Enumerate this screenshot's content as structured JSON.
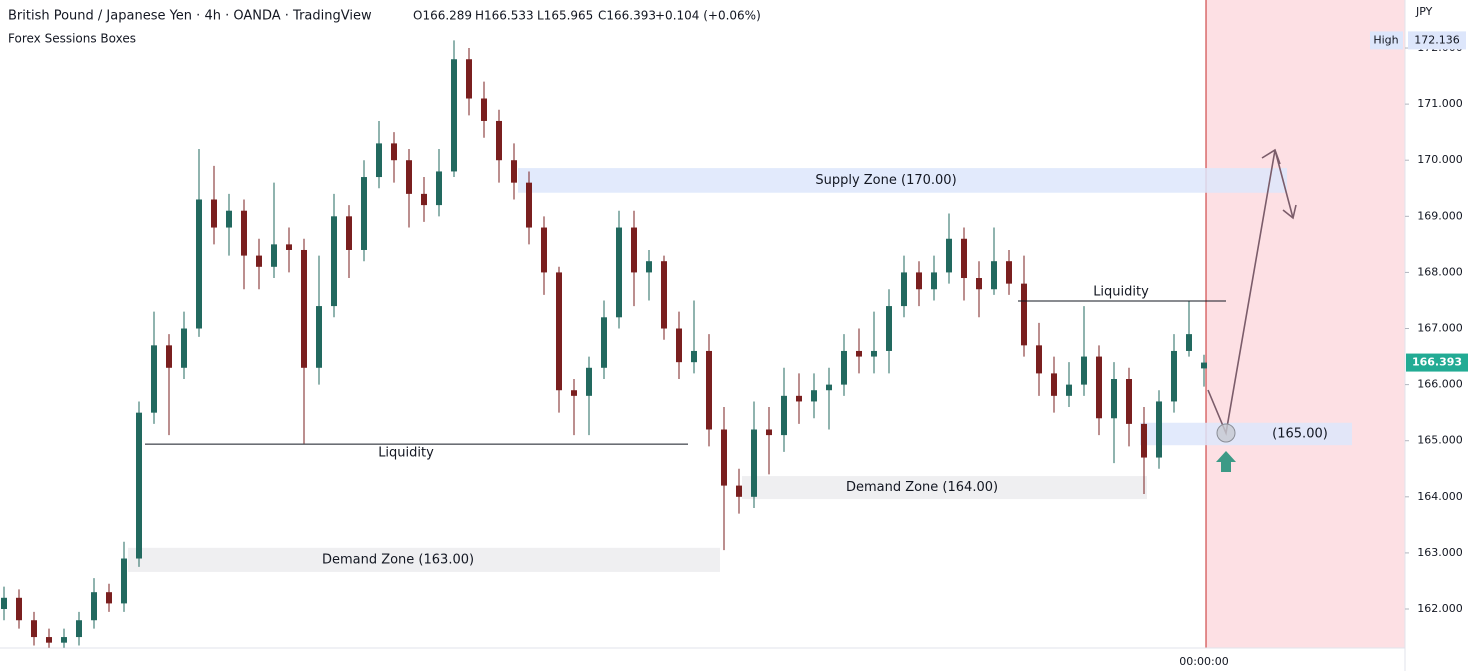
{
  "chart_data": {
    "type": "candlestick",
    "title": "British Pound / Japanese Yen · 4h · OANDA · TradingView",
    "header_values": [
      "O166.289",
      "H166.533",
      "L165.965",
      "C166.393",
      "+0.104 (+0.06%)"
    ],
    "indicator": "Forex Sessions Boxes",
    "currency": "JPY",
    "up_color": "#22695f",
    "down_color": "#7a1f1f",
    "ylim": [
      161.305,
      172.856
    ],
    "yticks": [
      {
        "value": 162,
        "label": "162.000"
      },
      {
        "value": 163,
        "label": "163.000"
      },
      {
        "value": 164,
        "label": "164.000"
      },
      {
        "value": 165,
        "label": "165.000"
      },
      {
        "value": 166,
        "label": "166.000"
      },
      {
        "value": 167,
        "label": "167.000"
      },
      {
        "value": 168,
        "label": "168.000"
      },
      {
        "value": 169,
        "label": "169.000"
      },
      {
        "value": 170,
        "label": "170.000"
      },
      {
        "value": 171,
        "label": "171.000"
      },
      {
        "value": 172,
        "label": "172.000"
      }
    ],
    "open": [
      162.0,
      162.2,
      161.8,
      161.5,
      161.4,
      161.5,
      161.8,
      162.3,
      162.1,
      162.9,
      165.5,
      166.7,
      166.3,
      167.0,
      169.3,
      168.8,
      169.1,
      168.3,
      168.1,
      168.5,
      168.4,
      166.3,
      167.4,
      169.0,
      168.4,
      169.7,
      170.3,
      170.0,
      169.4,
      169.2,
      169.8,
      171.8,
      171.1,
      170.7,
      170.0,
      169.6,
      168.8,
      168.0,
      165.9,
      165.8,
      166.3,
      167.2,
      168.8,
      168.0,
      168.2,
      167.0,
      166.4,
      166.6,
      165.2,
      164.2,
      164.0,
      165.2,
      165.1,
      165.8,
      165.7,
      165.9,
      166.0,
      166.6,
      166.5,
      166.6,
      167.4,
      168.0,
      167.7,
      168.0,
      168.6,
      167.9,
      167.7,
      168.2,
      167.8,
      166.7,
      166.2,
      165.8,
      166.0,
      166.5,
      165.4,
      166.1,
      165.3,
      164.7,
      165.7,
      166.6,
      166.289
    ],
    "high": [
      162.4,
      162.35,
      161.95,
      161.65,
      161.65,
      161.95,
      162.55,
      162.45,
      163.2,
      165.7,
      167.3,
      166.9,
      167.3,
      170.2,
      169.9,
      169.4,
      169.3,
      168.6,
      169.6,
      168.8,
      168.6,
      168.3,
      169.4,
      169.2,
      170.0,
      170.7,
      170.5,
      170.2,
      169.7,
      170.2,
      172.136,
      172.0,
      171.4,
      170.9,
      170.3,
      169.8,
      169.0,
      168.1,
      166.1,
      166.5,
      167.5,
      169.1,
      169.1,
      168.4,
      168.3,
      167.3,
      167.5,
      166.9,
      165.6,
      164.5,
      165.7,
      165.6,
      166.3,
      166.2,
      166.2,
      166.3,
      166.9,
      167.0,
      167.3,
      167.7,
      168.3,
      168.2,
      168.3,
      169.05,
      168.8,
      168.2,
      168.8,
      168.4,
      168.3,
      167.1,
      166.5,
      166.4,
      167.4,
      166.7,
      166.4,
      166.3,
      165.6,
      165.9,
      166.9,
      167.5,
      166.533
    ],
    "low": [
      161.8,
      161.65,
      161.35,
      161.31,
      161.31,
      161.35,
      161.65,
      161.95,
      161.95,
      162.75,
      165.3,
      165.1,
      166.1,
      166.85,
      168.5,
      168.3,
      167.7,
      167.7,
      167.9,
      168.0,
      164.95,
      166.0,
      167.2,
      167.9,
      168.2,
      169.5,
      169.6,
      168.8,
      168.9,
      169.0,
      169.7,
      170.8,
      170.4,
      169.6,
      169.3,
      168.5,
      167.6,
      165.5,
      165.1,
      165.1,
      166.1,
      167.0,
      167.4,
      167.5,
      166.8,
      166.1,
      166.2,
      164.9,
      163.05,
      163.7,
      163.8,
      164.4,
      164.8,
      165.3,
      165.4,
      165.2,
      165.8,
      166.2,
      166.2,
      166.2,
      167.2,
      167.4,
      167.5,
      167.8,
      167.5,
      167.2,
      167.6,
      167.6,
      166.5,
      165.8,
      165.5,
      165.6,
      165.8,
      165.1,
      164.6,
      164.9,
      164.05,
      164.5,
      165.5,
      166.5,
      165.965
    ],
    "close": [
      162.2,
      161.8,
      161.5,
      161.4,
      161.5,
      161.8,
      162.3,
      162.1,
      162.9,
      165.5,
      166.7,
      166.3,
      167.0,
      169.3,
      168.8,
      169.1,
      168.3,
      168.1,
      168.5,
      168.4,
      166.3,
      167.4,
      169.0,
      168.4,
      169.7,
      170.3,
      170.0,
      169.4,
      169.2,
      169.8,
      171.8,
      171.1,
      170.7,
      170.0,
      169.6,
      168.8,
      168.0,
      165.9,
      165.8,
      166.3,
      167.2,
      168.8,
      168.0,
      168.2,
      167.0,
      166.4,
      166.6,
      165.2,
      164.2,
      164.0,
      165.2,
      165.1,
      165.8,
      165.7,
      165.9,
      166.0,
      166.6,
      166.5,
      166.6,
      167.4,
      168.0,
      167.7,
      168.0,
      168.6,
      167.9,
      167.7,
      168.2,
      167.8,
      166.7,
      166.2,
      165.8,
      166.0,
      166.5,
      165.4,
      166.1,
      165.3,
      164.7,
      165.7,
      166.6,
      166.9,
      166.393
    ],
    "zones": [
      {
        "label": "Supply Zone (170.00)",
        "top": 169.86,
        "bottom": 169.42,
        "color": "#dde6fb"
      },
      {
        "label": "Demand Zone (164.00)",
        "top": 164.37,
        "bottom": 163.96,
        "color": "#ececee"
      },
      {
        "label": "Demand Zone (163.00)",
        "top": 163.09,
        "bottom": 162.66,
        "color": "#ececee"
      },
      {
        "label": "(165.00)",
        "top": 165.32,
        "bottom": 164.92,
        "color": "#dde6fb"
      }
    ],
    "lines": [
      {
        "label": "Liquidity",
        "value": 164.94
      },
      {
        "label": "Liquidity",
        "value": 167.49
      }
    ],
    "high_marker": {
      "label": "High",
      "value": 172.136,
      "value_label": "172.136"
    },
    "last_price": {
      "value": 166.393,
      "value_label": "166.393",
      "color": "#22ab94"
    },
    "time_label": "00:00:00"
  }
}
